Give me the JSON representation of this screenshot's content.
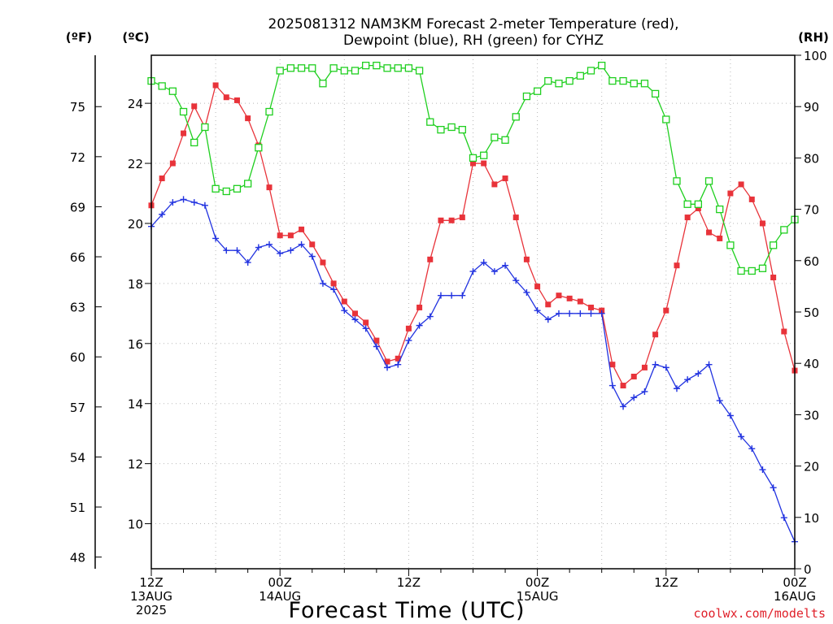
{
  "chart_data": {
    "type": "line",
    "title_line1": "2025081312 NAM3KM Forecast 2-meter Temperature (red),",
    "title_line2": "Dewpoint (blue), RH (green) for CYHZ",
    "xlabel": "Forecast Time (UTC)",
    "units": {
      "fahrenheit": "(ºF)",
      "celsius": "(ºC)",
      "rh": "(RH)"
    },
    "credit": "coolwx.com/modelts",
    "grid": true,
    "x_hours_range": [
      0,
      60
    ],
    "x_ticks": [
      {
        "hour": 0,
        "label_lines": [
          "12Z",
          "13AUG",
          "2025"
        ]
      },
      {
        "hour": 12,
        "label_lines": [
          "00Z",
          "14AUG"
        ]
      },
      {
        "hour": 24,
        "label_lines": [
          "12Z"
        ]
      },
      {
        "hour": 36,
        "label_lines": [
          "00Z",
          "15AUG"
        ]
      },
      {
        "hour": 48,
        "label_lines": [
          "12Z"
        ]
      },
      {
        "hour": 60,
        "label_lines": [
          "00Z",
          "16AUG"
        ]
      }
    ],
    "celsius_axis": {
      "range": [
        8.5,
        25.6
      ],
      "ticks": [
        10,
        12,
        14,
        16,
        18,
        20,
        22,
        24
      ]
    },
    "fahrenheit_axis": {
      "ticks": [
        48,
        51,
        54,
        57,
        60,
        63,
        66,
        69,
        72,
        75
      ]
    },
    "rh_axis": {
      "range": [
        0,
        100
      ],
      "ticks": [
        0,
        10,
        20,
        30,
        40,
        50,
        60,
        70,
        80,
        90,
        100
      ]
    },
    "series": [
      {
        "name": "Temperature",
        "color": "#e8333a",
        "marker": "filled-square",
        "axis": "celsius",
        "x": [
          0,
          1,
          2,
          3,
          4,
          5,
          6,
          7,
          8,
          9,
          10,
          11,
          12,
          13,
          14,
          15,
          16,
          17,
          18,
          19,
          20,
          21,
          22,
          23,
          24,
          25,
          26,
          27,
          28,
          29,
          30,
          31,
          32,
          33,
          34,
          35,
          36,
          37,
          38,
          39,
          40,
          41,
          42,
          43,
          44,
          45,
          46,
          47,
          48,
          49,
          50,
          51,
          52,
          53,
          54,
          55,
          56,
          57,
          58,
          59,
          60
        ],
        "values": [
          20.6,
          21.5,
          22.0,
          23.0,
          23.9,
          23.2,
          24.6,
          24.2,
          24.1,
          23.5,
          22.6,
          21.2,
          19.6,
          19.6,
          19.8,
          19.3,
          18.7,
          18.0,
          17.4,
          17.0,
          16.7,
          16.1,
          15.4,
          15.5,
          16.5,
          17.2,
          18.8,
          20.1,
          20.1,
          20.2,
          22.0,
          22.0,
          21.3,
          21.5,
          20.2,
          18.8,
          17.9,
          17.3,
          17.6,
          17.5,
          17.4,
          17.2,
          17.1,
          15.3,
          14.6,
          14.9,
          15.2,
          16.3,
          17.1,
          18.6,
          20.2,
          20.5,
          19.7,
          19.5,
          21.0,
          21.3,
          20.8,
          20.0,
          18.2,
          16.4,
          15.1
        ]
      },
      {
        "name": "Dewpoint",
        "color": "#2233e0",
        "marker": "plus",
        "axis": "celsius",
        "x": [
          0,
          1,
          2,
          3,
          4,
          5,
          6,
          7,
          8,
          9,
          10,
          11,
          12,
          13,
          14,
          15,
          16,
          17,
          18,
          19,
          20,
          21,
          22,
          23,
          24,
          25,
          26,
          27,
          28,
          29,
          30,
          31,
          32,
          33,
          34,
          35,
          36,
          37,
          38,
          39,
          40,
          41,
          42,
          43,
          44,
          45,
          46,
          47,
          48,
          49,
          50,
          51,
          52,
          53,
          54,
          55,
          56,
          57,
          58,
          59,
          60
        ],
        "values": [
          19.9,
          20.3,
          20.7,
          20.8,
          20.7,
          20.6,
          19.5,
          19.1,
          19.1,
          18.7,
          19.2,
          19.3,
          19.0,
          19.1,
          19.3,
          18.9,
          18.0,
          17.8,
          17.1,
          16.8,
          16.5,
          15.9,
          15.2,
          15.3,
          16.1,
          16.6,
          16.9,
          17.6,
          17.6,
          17.6,
          18.4,
          18.7,
          18.4,
          18.6,
          18.1,
          17.7,
          17.1,
          16.8,
          17.0,
          17.0,
          17.0,
          17.0,
          17.0,
          14.6,
          13.9,
          14.2,
          14.4,
          15.3,
          15.2,
          14.5,
          14.8,
          15.0,
          15.3,
          14.1,
          13.6,
          12.9,
          12.5,
          11.8,
          11.2,
          10.2,
          9.4
        ]
      },
      {
        "name": "RH",
        "color": "#1fcf1f",
        "marker": "open-square",
        "axis": "rh",
        "x": [
          0,
          1,
          2,
          3,
          4,
          5,
          6,
          7,
          8,
          9,
          10,
          11,
          12,
          13,
          14,
          15,
          16,
          17,
          18,
          19,
          20,
          21,
          22,
          23,
          24,
          25,
          26,
          27,
          28,
          29,
          30,
          31,
          32,
          33,
          34,
          35,
          36,
          37,
          38,
          39,
          40,
          41,
          42,
          43,
          44,
          45,
          46,
          47,
          48,
          49,
          50,
          51,
          52,
          53,
          54,
          55,
          56,
          57,
          58,
          59,
          60
        ],
        "values": [
          95,
          94,
          93,
          89,
          83,
          86,
          74,
          73.5,
          74,
          75,
          82,
          89,
          97,
          97.5,
          97.5,
          97.5,
          94.5,
          97.5,
          97,
          97,
          98,
          98,
          97.5,
          97.5,
          97.5,
          97,
          87,
          85.5,
          86,
          85.5,
          80,
          80.5,
          84,
          83.5,
          88,
          92,
          93,
          95,
          94.5,
          95,
          96,
          97,
          98,
          95,
          95,
          94.5,
          94.5,
          92.5,
          87.5,
          75.5,
          71,
          71,
          75.5,
          70,
          63,
          58,
          58,
          58.5,
          63,
          66,
          68
        ]
      }
    ]
  }
}
